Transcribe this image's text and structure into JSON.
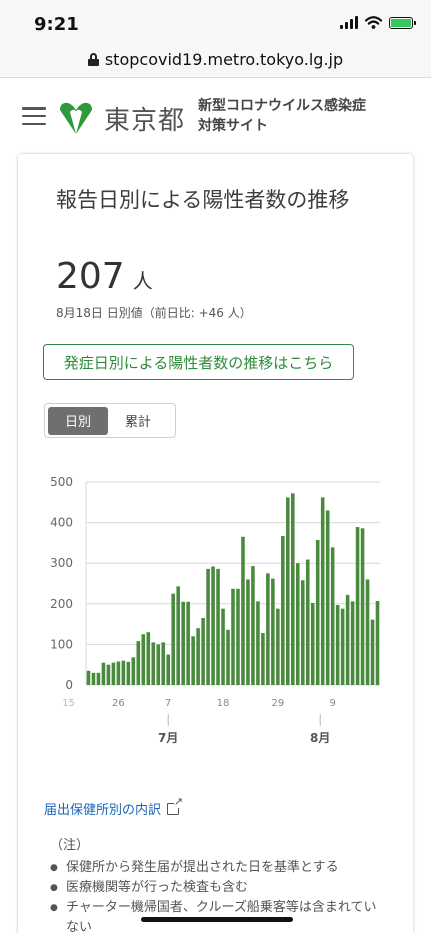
{
  "status_bar": {
    "time": "9:21"
  },
  "browser": {
    "url": "stopcovid19.metro.tokyo.lg.jp"
  },
  "header": {
    "logo_text": "東京都",
    "site_title_1": "新型コロナウイルス感染症",
    "site_title_2": "対策サイト"
  },
  "card": {
    "title": "報告日別による陽性者数の推移",
    "count_value": "207",
    "count_unit": "人",
    "date_note": "8月18日 日別値（前日比: +46 人）",
    "link_button": "発症日別による陽性者数の推移はこちら",
    "toggle": {
      "daily": "日別",
      "cumulative": "累計"
    },
    "report_link": "届出保健所別の内訳",
    "notes_head": "（注）",
    "notes": [
      "保健所から発生届が提出された日を基準とする",
      "医療機関等が行った検査も含む",
      "チャーター機帰国者、クルーズ船乗客等は含まれていない"
    ]
  },
  "colors": {
    "bar": "#4a8a3e",
    "accent": "#2e8b3c",
    "link": "#1a66b8"
  },
  "chart_data": {
    "type": "bar",
    "x_ticks": [
      "15",
      "26",
      "7",
      "18",
      "29",
      "9"
    ],
    "month_labels": [
      "7月",
      "8月"
    ],
    "ylim": [
      0,
      500
    ],
    "y_ticks": [
      "0",
      "100",
      "200",
      "300",
      "400",
      "500"
    ],
    "grid": true,
    "values": [
      35,
      30,
      30,
      55,
      50,
      55,
      58,
      60,
      57,
      68,
      108,
      125,
      130,
      105,
      100,
      105,
      75,
      225,
      243,
      205,
      205,
      120,
      140,
      165,
      286,
      292,
      286,
      188,
      136,
      237,
      237,
      365,
      260,
      293,
      206,
      128,
      275,
      262,
      188,
      367,
      462,
      472,
      300,
      258,
      309,
      202,
      357,
      462,
      430,
      339,
      197,
      188,
      222,
      206,
      389,
      386,
      260,
      161,
      207
    ],
    "series": [
      {
        "name": "日別",
        "color": "#4a8a3e"
      }
    ]
  }
}
